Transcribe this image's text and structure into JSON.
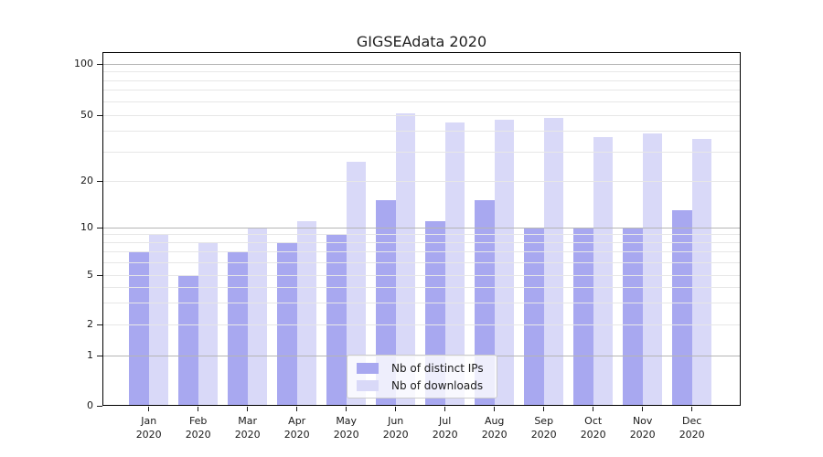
{
  "title": "GIGSEAdata 2020",
  "chart_data": {
    "type": "bar",
    "title": "GIGSEAdata 2020",
    "categories": [
      "Jan",
      "Feb",
      "Mar",
      "Apr",
      "May",
      "Jun",
      "Jul",
      "Aug",
      "Sep",
      "Oct",
      "Nov",
      "Dec"
    ],
    "category_year": "2020",
    "series": [
      {
        "name": "Nb of distinct IPs",
        "color": "#a8a8f0",
        "values": [
          7,
          5,
          7,
          8,
          9,
          15,
          11,
          15,
          10,
          10,
          10,
          13
        ]
      },
      {
        "name": "Nb of downloads",
        "color": "#d9d9f8",
        "values": [
          9,
          8,
          10,
          11,
          26,
          51,
          45,
          47,
          48,
          37,
          39,
          36
        ]
      }
    ],
    "yaxis": {
      "scale": "symlog",
      "tick_labels": [
        0,
        1,
        2,
        5,
        10,
        20,
        50,
        100
      ],
      "major_gridlines": [
        1,
        10,
        100
      ],
      "minor_gridlines": [
        2,
        3,
        4,
        5,
        6,
        7,
        8,
        9,
        20,
        30,
        40,
        50,
        60,
        70,
        80,
        90
      ],
      "range": [
        0,
        115
      ]
    },
    "xlabel": "",
    "ylabel": "",
    "grid": true,
    "legend_position": "lower-center"
  }
}
